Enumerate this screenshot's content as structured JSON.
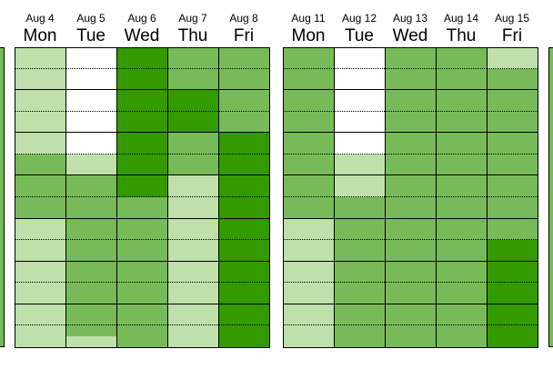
{
  "colors": {
    "none": "#ffffff",
    "light": "#bfe0aa",
    "medium": "#77bb58",
    "dark": "#339a00",
    "gridline": "#000000"
  },
  "slots_per_day": 14,
  "weeks": [
    {
      "days": [
        {
          "date": "Aug 4",
          "dow": "Mon",
          "slots": [
            "light",
            "light",
            "light",
            "light",
            "light",
            "medium",
            "medium",
            "medium",
            "light",
            "light",
            "light",
            "light",
            "light",
            "light"
          ]
        },
        {
          "date": "Aug 5",
          "dow": "Tue",
          "slots": [
            "none",
            "none",
            "none",
            "none",
            "none",
            "light",
            "medium",
            "medium",
            "medium",
            "medium",
            "medium",
            "medium",
            "medium",
            "medium"
          ],
          "last_slot_split": [
            "medium",
            "light"
          ]
        },
        {
          "date": "Aug 6",
          "dow": "Wed",
          "slots": [
            "dark",
            "dark",
            "dark",
            "dark",
            "dark",
            "dark",
            "dark",
            "medium",
            "medium",
            "medium",
            "medium",
            "medium",
            "medium",
            "medium"
          ]
        },
        {
          "date": "Aug 7",
          "dow": "Thu",
          "slots": [
            "medium",
            "medium",
            "dark",
            "dark",
            "medium",
            "medium",
            "light",
            "light",
            "light",
            "light",
            "light",
            "light",
            "light",
            "light"
          ]
        },
        {
          "date": "Aug 8",
          "dow": "Fri",
          "slots": [
            "medium",
            "medium",
            "medium",
            "medium",
            "dark",
            "dark",
            "dark",
            "dark",
            "dark",
            "dark",
            "dark",
            "dark",
            "dark",
            "dark"
          ]
        }
      ]
    },
    {
      "days": [
        {
          "date": "Aug 11",
          "dow": "Mon",
          "slots": [
            "medium",
            "medium",
            "medium",
            "medium",
            "medium",
            "medium",
            "medium",
            "medium",
            "light",
            "light",
            "light",
            "light",
            "light",
            "light"
          ]
        },
        {
          "date": "Aug 12",
          "dow": "Tue",
          "slots": [
            "none",
            "none",
            "none",
            "none",
            "none",
            "light",
            "light",
            "medium",
            "medium",
            "medium",
            "medium",
            "medium",
            "medium",
            "medium"
          ]
        },
        {
          "date": "Aug 13",
          "dow": "Wed",
          "slots": [
            "medium",
            "medium",
            "medium",
            "medium",
            "medium",
            "medium",
            "medium",
            "medium",
            "medium",
            "medium",
            "medium",
            "medium",
            "medium",
            "medium"
          ]
        },
        {
          "date": "Aug 14",
          "dow": "Thu",
          "slots": [
            "medium",
            "medium",
            "medium",
            "medium",
            "medium",
            "medium",
            "medium",
            "medium",
            "medium",
            "medium",
            "medium",
            "medium",
            "medium",
            "medium"
          ]
        },
        {
          "date": "Aug 15",
          "dow": "Fri",
          "slots": [
            "light",
            "medium",
            "medium",
            "medium",
            "medium",
            "medium",
            "medium",
            "medium",
            "medium",
            "dark",
            "dark",
            "dark",
            "dark",
            "dark"
          ]
        }
      ]
    }
  ],
  "edge_left_fill": "medium",
  "edge_right_fill": "medium"
}
